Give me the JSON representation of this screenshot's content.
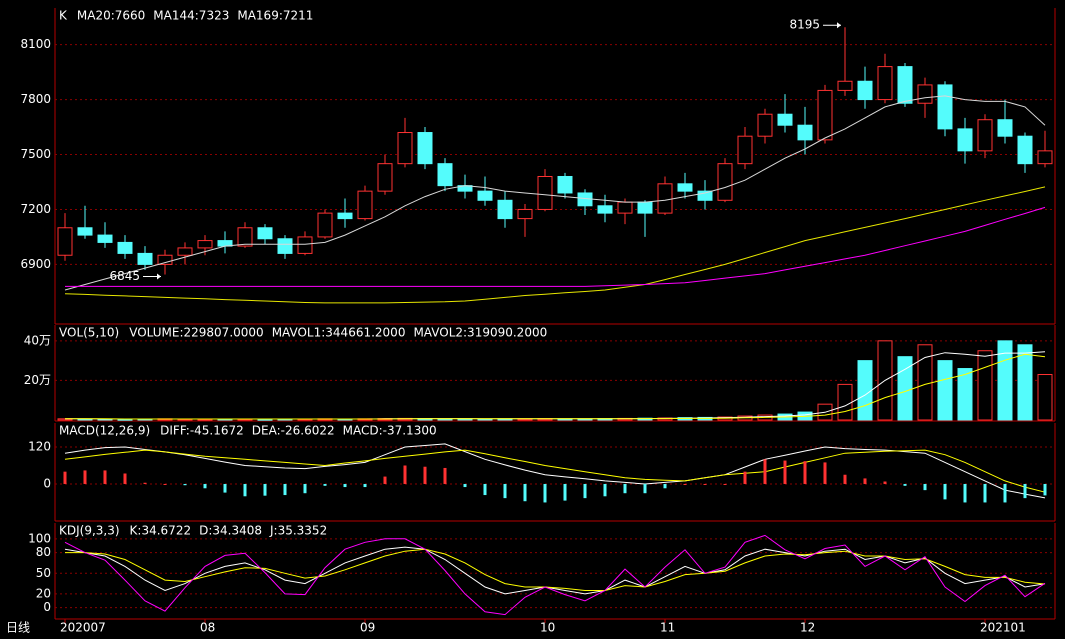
{
  "chart_data": [
    {
      "type": "candlestick",
      "title": "K",
      "open": [
        6950,
        7100,
        7060,
        7020,
        6960,
        6900,
        6950,
        6990,
        7030,
        7000,
        7100,
        7040,
        6960,
        7050,
        7180,
        7150,
        7300,
        7450,
        7620,
        7450,
        7330,
        7300,
        7250,
        7150,
        7200,
        7380,
        7290,
        7220,
        7180,
        7240,
        7180,
        7340,
        7300,
        7250,
        7450,
        7600,
        7720,
        7660,
        7580,
        7850,
        7900,
        7800,
        7980,
        7780,
        7880,
        7640,
        7520,
        7690,
        7600,
        7450
      ],
      "high": [
        7180,
        7220,
        7130,
        7060,
        7000,
        6980,
        7020,
        7060,
        7080,
        7130,
        7120,
        7060,
        7080,
        7200,
        7260,
        7330,
        7500,
        7700,
        7650,
        7480,
        7390,
        7380,
        7300,
        7230,
        7420,
        7400,
        7310,
        7280,
        7260,
        7250,
        7380,
        7400,
        7360,
        7480,
        7650,
        7750,
        7830,
        7760,
        7880,
        8195,
        7980,
        8050,
        8000,
        7920,
        7900,
        7700,
        7720,
        7800,
        7620,
        7630
      ],
      "low": [
        6920,
        7040,
        6990,
        6930,
        6870,
        6845,
        6900,
        6950,
        6960,
        6990,
        7010,
        6930,
        6950,
        7040,
        7100,
        7140,
        7280,
        7430,
        7420,
        7300,
        7260,
        7220,
        7100,
        7050,
        7190,
        7260,
        7170,
        7130,
        7120,
        7050,
        7170,
        7260,
        7200,
        7240,
        7420,
        7560,
        7620,
        7500,
        7560,
        7820,
        7750,
        7780,
        7760,
        7700,
        7600,
        7450,
        7480,
        7560,
        7400,
        7430
      ],
      "close": [
        7100,
        7060,
        7020,
        6960,
        6900,
        6950,
        6990,
        7030,
        7000,
        7100,
        7040,
        6960,
        7050,
        7180,
        7150,
        7300,
        7450,
        7620,
        7450,
        7330,
        7300,
        7250,
        7150,
        7200,
        7380,
        7290,
        7220,
        7180,
        7240,
        7180,
        7340,
        7300,
        7250,
        7450,
        7600,
        7720,
        7660,
        7580,
        7850,
        7900,
        7800,
        7980,
        7780,
        7880,
        7640,
        7520,
        7690,
        7600,
        7450,
        7520
      ],
      "up_color": "#ff3232",
      "down_color": "#54fcfc",
      "series": [
        {
          "name": "MA20:7660",
          "color": "#d8d8d8",
          "values": [
            6760,
            6790,
            6820,
            6850,
            6880,
            6910,
            6940,
            6970,
            7000,
            7010,
            7010,
            7010,
            7010,
            7020,
            7060,
            7110,
            7160,
            7220,
            7270,
            7310,
            7330,
            7320,
            7300,
            7290,
            7280,
            7270,
            7260,
            7250,
            7240,
            7240,
            7250,
            7270,
            7290,
            7320,
            7360,
            7420,
            7480,
            7530,
            7590,
            7640,
            7700,
            7760,
            7790,
            7810,
            7820,
            7800,
            7790,
            7790,
            7760,
            7660
          ]
        },
        {
          "name": "MA144:7323",
          "color": "#e6e600",
          "values": [
            6740,
            6736,
            6732,
            6728,
            6724,
            6720,
            6716,
            6712,
            6708,
            6704,
            6700,
            6696,
            6692,
            6690,
            6690,
            6690,
            6690,
            6692,
            6694,
            6696,
            6700,
            6710,
            6720,
            6730,
            6737,
            6745,
            6752,
            6760,
            6775,
            6790,
            6817,
            6845,
            6872,
            6900,
            6932,
            6965,
            6997,
            7030,
            7054,
            7078,
            7102,
            7126,
            7150,
            7175,
            7200,
            7225,
            7250,
            7274,
            7298,
            7323
          ]
        },
        {
          "name": "MA169:7211",
          "color": "#ff00ff",
          "values": [
            6780,
            6780,
            6780,
            6780,
            6780,
            6780,
            6780,
            6780,
            6780,
            6780,
            6780,
            6780,
            6780,
            6780,
            6780,
            6780,
            6780,
            6780,
            6780,
            6780,
            6780,
            6780,
            6780,
            6780,
            6780,
            6780,
            6780,
            6783,
            6787,
            6790,
            6795,
            6800,
            6812,
            6825,
            6837,
            6850,
            6870,
            6890,
            6910,
            6930,
            6950,
            6976,
            7002,
            7028,
            7054,
            7080,
            7113,
            7146,
            7178,
            7211
          ]
        }
      ],
      "ylim": [
        6580,
        8300
      ],
      "yticks": [
        6900,
        7200,
        7500,
        7800,
        8100
      ],
      "grid": true,
      "annotations": [
        {
          "x": 39,
          "value": 8195
        },
        {
          "x": 5,
          "value": 6845
        }
      ]
    },
    {
      "type": "bar",
      "title": "VOL(5,10)",
      "up_color": "#ff3232",
      "down_color": "#54fcfc",
      "series": [
        {
          "name": "VOLUME:229807.0000",
          "color": "#ffffff",
          "type": "bar",
          "values": [
            0.6,
            0.5,
            0.5,
            0.4,
            0.5,
            0.6,
            0.5,
            0.4,
            0.5,
            0.5,
            0.4,
            0.5,
            0.5,
            0.6,
            0.5,
            0.6,
            0.7,
            0.8,
            0.7,
            0.6,
            0.6,
            0.5,
            0.6,
            0.6,
            0.7,
            0.6,
            0.6,
            0.7,
            0.8,
            0.9,
            1.0,
            1.2,
            1.3,
            1.5,
            2.0,
            2.5,
            3.0,
            4.0,
            8,
            18,
            30,
            40,
            32,
            38,
            30,
            26,
            35,
            40,
            38,
            22.98072
          ]
        },
        {
          "name": "MAVOL1:344661.2000",
          "color": "#ffffff",
          "values": [
            0.6,
            0.6,
            0.5,
            0.5,
            0.5,
            0.5,
            0.5,
            0.5,
            0.5,
            0.5,
            0.5,
            0.5,
            0.5,
            0.5,
            0.5,
            0.5,
            0.6,
            0.6,
            0.7,
            0.7,
            0.7,
            0.6,
            0.6,
            0.6,
            0.6,
            0.6,
            0.6,
            0.6,
            0.7,
            0.7,
            0.8,
            0.9,
            1.0,
            1.2,
            1.4,
            1.7,
            2.0,
            2.6,
            3.9,
            7.1,
            12.6,
            20,
            25.6,
            31.6,
            34,
            33.2,
            32.2,
            33.8,
            33.8,
            34.46612
          ]
        },
        {
          "name": "MAVOL2:319090.2000",
          "color": "#ffff00",
          "values": [
            0.6,
            0.6,
            0.6,
            0.5,
            0.5,
            0.5,
            0.5,
            0.5,
            0.5,
            0.5,
            0.5,
            0.5,
            0.5,
            0.5,
            0.5,
            0.5,
            0.5,
            0.6,
            0.6,
            0.6,
            0.6,
            0.6,
            0.6,
            0.6,
            0.6,
            0.6,
            0.6,
            0.6,
            0.6,
            0.7,
            0.7,
            0.8,
            0.8,
            0.9,
            1.1,
            1.3,
            1.5,
            1.8,
            2.5,
            4.3,
            7.3,
            11.3,
            14.4,
            18,
            20.5,
            23,
            26.6,
            30.2,
            33.2,
            31.90902
          ]
        }
      ],
      "ylim": [
        0,
        48
      ],
      "yticks": [
        {
          "value": 20,
          "label": "20万"
        },
        {
          "value": 40,
          "label": "40万"
        }
      ],
      "grid": true
    },
    {
      "type": "bar",
      "title": "MACD(12,26,9)",
      "up_color": "#ff3232",
      "down_color": "#54fcfc",
      "series": [
        {
          "name": "DIFF:-45.1672",
          "color": "#ffffff",
          "values": [
            100,
            110,
            118,
            120,
            112,
            104,
            95,
            83,
            71,
            60,
            56,
            52,
            50,
            57,
            63,
            70,
            95,
            120,
            125,
            130,
            105,
            80,
            62,
            45,
            30,
            23,
            17,
            10,
            5,
            0,
            5,
            10,
            20,
            30,
            55,
            80,
            93,
            107,
            120,
            115,
            112,
            110,
            105,
            100,
            70,
            40,
            10,
            -20,
            -33,
            -45.1672
          ]
        },
        {
          "name": "DEA:-26.6022",
          "color": "#ffff00",
          "values": [
            80,
            88,
            96,
            103,
            110,
            104,
            97,
            90,
            85,
            80,
            75,
            70,
            65,
            60,
            68,
            75,
            83,
            90,
            97,
            104,
            110,
            98,
            85,
            73,
            60,
            50,
            40,
            30,
            20,
            15,
            12,
            10,
            20,
            30,
            35,
            40,
            55,
            70,
            85,
            100,
            103,
            106,
            108,
            110,
            95,
            70,
            40,
            10,
            -10,
            -26.6022
          ]
        },
        {
          "name": "MACD:-37.1300",
          "color": "#ffffff",
          "type": "bar",
          "values": [
            40,
            44,
            44,
            34,
            4,
            0,
            -4,
            -14,
            -28,
            -40,
            -38,
            -36,
            -30,
            -6,
            -10,
            -10,
            24,
            60,
            56,
            52,
            -10,
            -36,
            -46,
            -56,
            -60,
            -54,
            -46,
            -40,
            -30,
            -30,
            -14,
            0,
            0,
            0,
            40,
            80,
            76,
            74,
            70,
            30,
            18,
            8,
            -6,
            -20,
            -50,
            -60,
            -60,
            -60,
            -46,
            -37.13
          ]
        }
      ],
      "ylim": [
        -117,
        198
      ],
      "yticks": [
        0,
        120
      ],
      "grid": true
    },
    {
      "type": "line",
      "title": "KDJ(9,3,3)",
      "series": [
        {
          "name": "K:34.6722",
          "color": "#ffffff",
          "values": [
            85,
            80,
            75,
            60,
            40,
            25,
            35,
            50,
            60,
            65,
            55,
            40,
            35,
            50,
            65,
            75,
            85,
            88,
            85,
            70,
            50,
            30,
            20,
            25,
            30,
            25,
            20,
            25,
            40,
            30,
            45,
            60,
            50,
            55,
            75,
            85,
            80,
            75,
            82,
            85,
            70,
            75,
            65,
            72,
            50,
            35,
            40,
            45,
            30,
            34.6722
          ]
        },
        {
          "name": "D:34.3408",
          "color": "#ffff00",
          "values": [
            80,
            80,
            78,
            70,
            55,
            40,
            38,
            45,
            52,
            58,
            57,
            50,
            43,
            46,
            55,
            65,
            75,
            82,
            85,
            78,
            65,
            48,
            35,
            30,
            30,
            28,
            25,
            25,
            32,
            30,
            38,
            48,
            50,
            53,
            65,
            75,
            78,
            77,
            80,
            82,
            75,
            75,
            70,
            71,
            60,
            48,
            44,
            44,
            37,
            34.3408
          ]
        },
        {
          "name": "J:35.3352",
          "color": "#ff00ff",
          "values": [
            95,
            80,
            69,
            40,
            10,
            -5,
            29,
            60,
            76,
            79,
            51,
            20,
            19,
            58,
            85,
            95,
            100,
            100,
            85,
            54,
            20,
            -6,
            -10,
            15,
            30,
            19,
            10,
            25,
            56,
            30,
            59,
            84,
            50,
            59,
            95,
            105,
            84,
            71,
            86,
            91,
            60,
            75,
            55,
            74,
            30,
            9,
            32,
            47,
            16,
            35.3352
          ]
        }
      ],
      "ylim": [
        -15,
        123
      ],
      "yticks": [
        0,
        20,
        50,
        80,
        100
      ],
      "grid": true,
      "x_label": "日线",
      "xticks": [
        {
          "value": 0,
          "label": "202007"
        },
        {
          "value": 7,
          "label": "08"
        },
        {
          "value": 15,
          "label": "09"
        },
        {
          "value": 24,
          "label": "10"
        },
        {
          "value": 30,
          "label": "11"
        },
        {
          "value": 37,
          "label": "12"
        },
        {
          "value": 46,
          "label": "202101"
        }
      ]
    }
  ]
}
